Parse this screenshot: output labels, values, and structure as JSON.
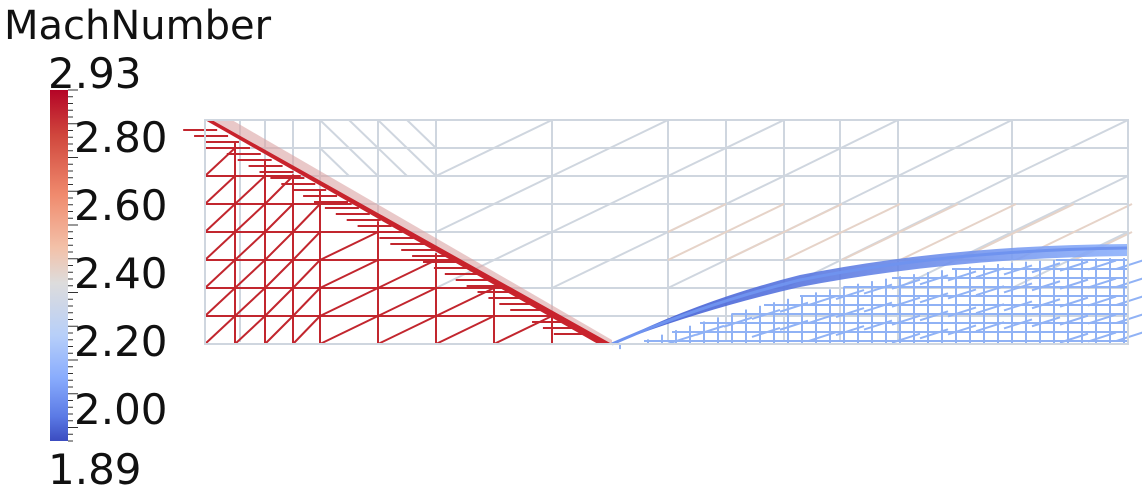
{
  "legend": {
    "title": "MachNumber",
    "max_label": "2.93",
    "min_label": "1.89",
    "ticks": [
      "2.80",
      "2.60",
      "2.40",
      "2.20",
      "2.00"
    ],
    "range": [
      1.89,
      2.93
    ]
  },
  "colors": {
    "high": "#b40426",
    "mid": "#dddcdc",
    "low": "#3b4cc0",
    "mesh_neutral": "#cfd6df",
    "mesh_warm": "#e6d3c8",
    "shock_red": "#c2262e",
    "shock_blue": "#5d7fe6"
  }
}
